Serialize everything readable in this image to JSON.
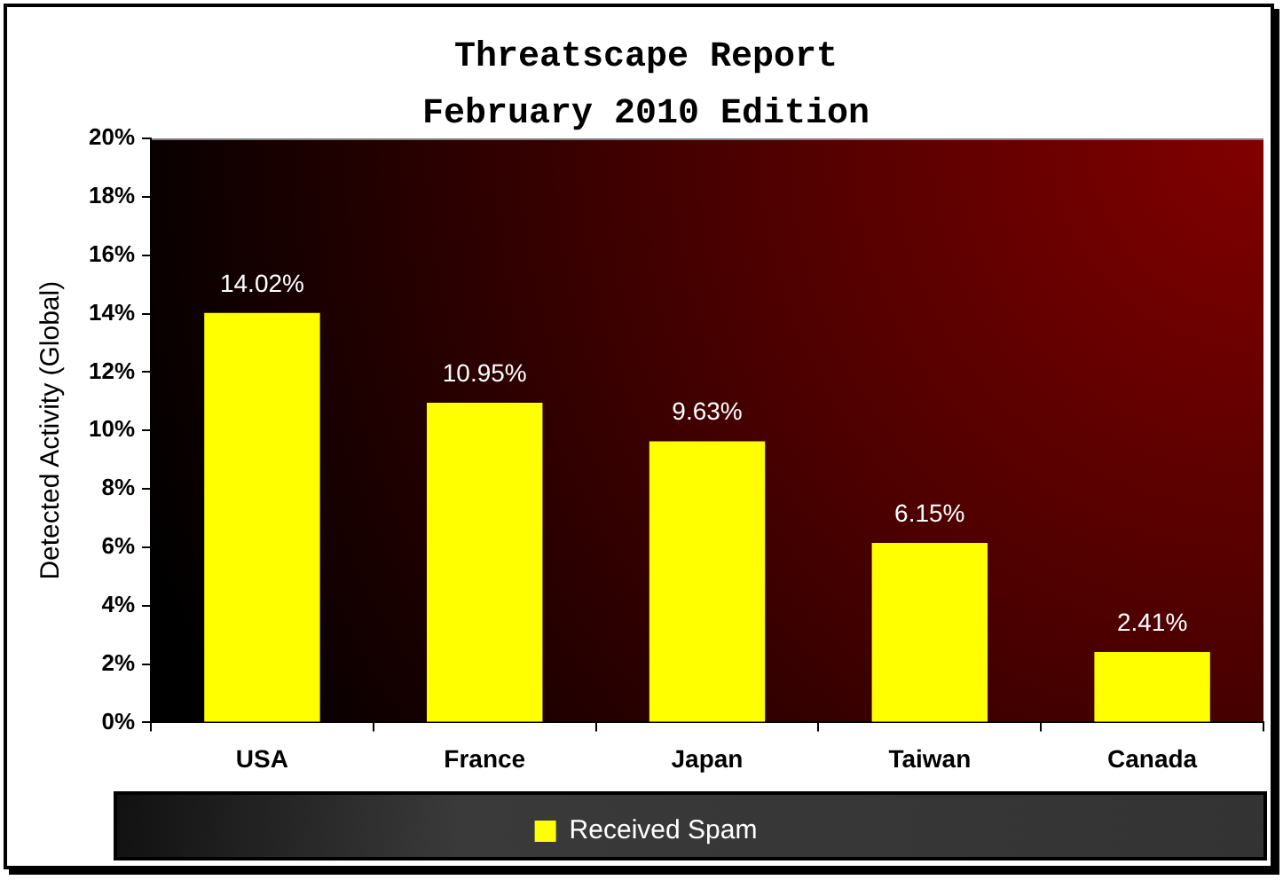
{
  "chart_data": {
    "type": "bar",
    "title": "Threatscape Report",
    "subtitle": "February 2010 Edition",
    "ylabel": "Detected Activity (Global)",
    "categories": [
      "USA",
      "France",
      "Japan",
      "Taiwan",
      "Canada"
    ],
    "series": [
      {
        "name": "Received Spam",
        "color": "#ffff00",
        "values": [
          14.02,
          10.95,
          9.63,
          6.15,
          2.41
        ],
        "value_labels": [
          "14.02%",
          "10.95%",
          "9.63%",
          "6.15%",
          "2.41%"
        ]
      }
    ],
    "ylim": [
      0,
      20
    ],
    "yticks": [
      {
        "value": 0,
        "label": "0%"
      },
      {
        "value": 2,
        "label": "2%"
      },
      {
        "value": 4,
        "label": "4%"
      },
      {
        "value": 6,
        "label": "6%"
      },
      {
        "value": 8,
        "label": "8%"
      },
      {
        "value": 10,
        "label": "10%"
      },
      {
        "value": 12,
        "label": "12%"
      },
      {
        "value": 14,
        "label": "14%"
      },
      {
        "value": 16,
        "label": "16%"
      },
      {
        "value": 18,
        "label": "18%"
      },
      {
        "value": 20,
        "label": "20%"
      }
    ],
    "legend": "bottom"
  }
}
